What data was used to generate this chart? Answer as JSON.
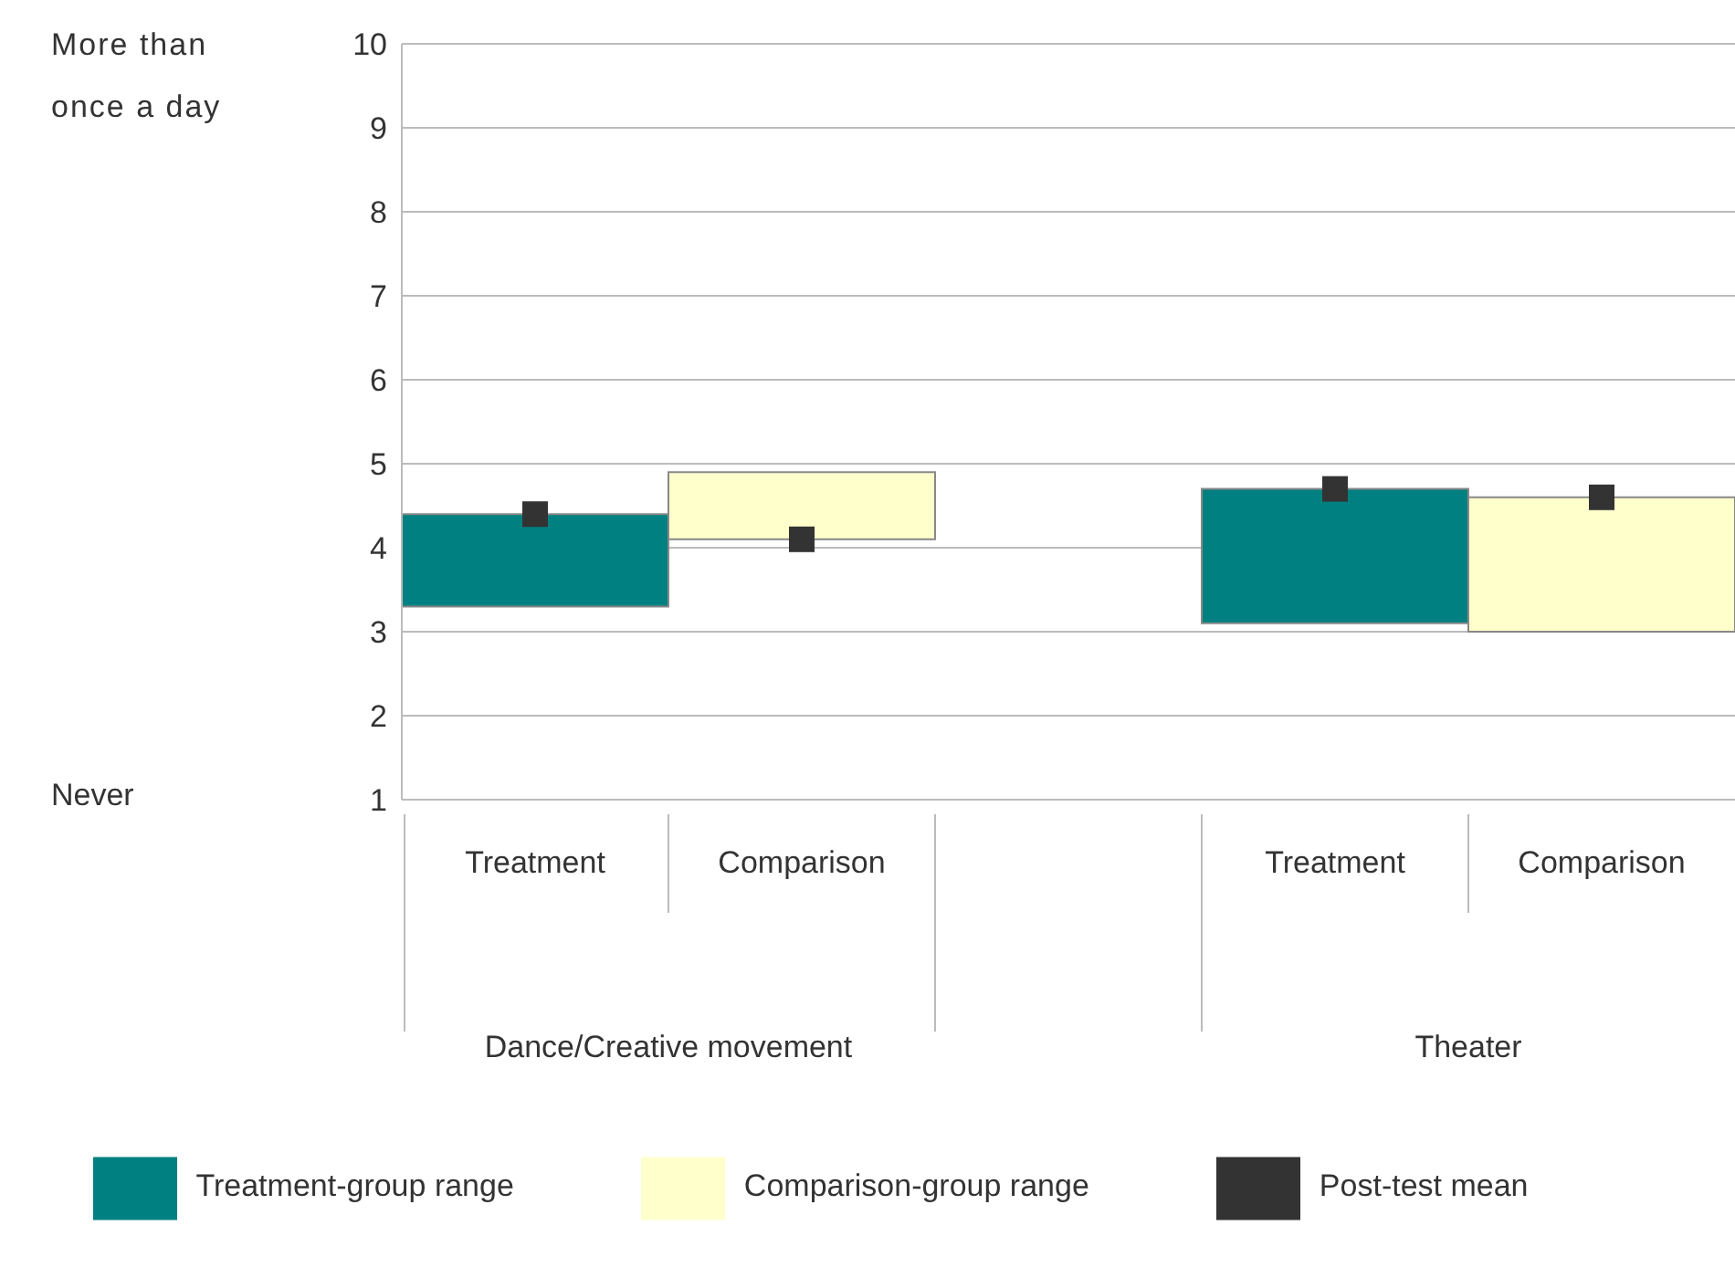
{
  "chart_data": {
    "type": "bar",
    "categories": [
      "Treatment",
      "Comparison",
      null,
      "Treatment",
      "Comparison"
    ],
    "series": [
      {
        "name": "Treatment-group range",
        "color": "#008080",
        "base": [
          3.3,
          null,
          null,
          3.1,
          null
        ],
        "values": [
          1.1,
          null,
          null,
          1.6,
          null
        ]
      },
      {
        "name": "Comparison-group range",
        "color": "#ffffcc",
        "base": [
          null,
          4.1,
          null,
          null,
          3.0
        ],
        "values": [
          null,
          0.8,
          null,
          null,
          1.6
        ]
      },
      {
        "name": "Post-test mean",
        "type": "scatter",
        "marker": "square",
        "color": "#333333",
        "values": [
          4.4,
          4.1,
          null,
          4.7,
          4.6
        ]
      }
    ],
    "ylim": [
      1,
      10
    ],
    "yticks": [
      1,
      2,
      3,
      4,
      5,
      6,
      7,
      8,
      9,
      10
    ],
    "grid": "y",
    "legend": "bottom",
    "annotations": [
      "More than once a day",
      "Never",
      "Dance/Creative movement",
      "Theater"
    ]
  }
}
